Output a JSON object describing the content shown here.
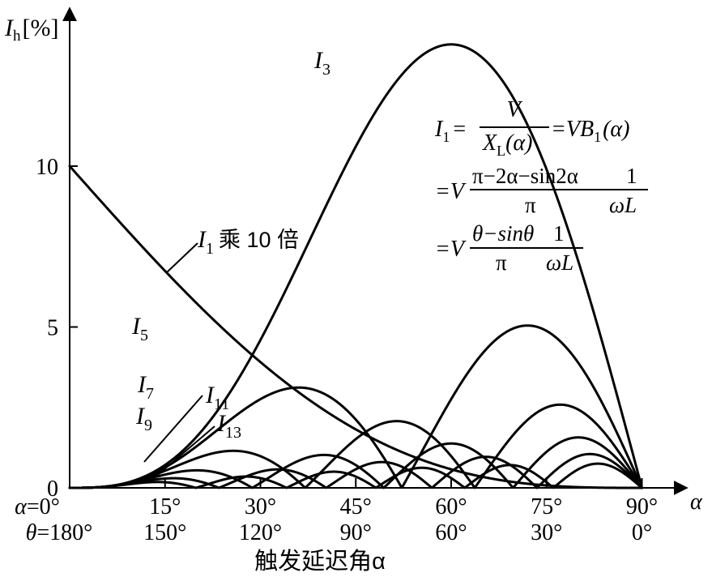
{
  "chart_data": {
    "type": "line",
    "ylabel": {
      "main": "I",
      "sub": "h",
      "unit": "[%]"
    },
    "xlabel": "触发延迟角α",
    "xaxis_symbol": "α",
    "xlim": [
      0,
      95
    ],
    "ylim": [
      0,
      14.5
    ],
    "yticks": [
      {
        "v": 0,
        "label": "0"
      },
      {
        "v": 5,
        "label": "5"
      },
      {
        "v": 10,
        "label": "10"
      }
    ],
    "xticks": [
      {
        "v": 0,
        "alpha": "α=0°",
        "theta": "θ=180°"
      },
      {
        "v": 15,
        "alpha": "15°",
        "theta": "150°"
      },
      {
        "v": 30,
        "alpha": "30°",
        "theta": "120°"
      },
      {
        "v": 45,
        "alpha": "45°",
        "theta": "90°"
      },
      {
        "v": 60,
        "alpha": "60°",
        "theta": "60°"
      },
      {
        "v": 75,
        "alpha": "75°",
        "theta": "30°"
      },
      {
        "v": 90,
        "alpha": "90°",
        "theta": "0°"
      }
    ],
    "series": [
      {
        "name": "I1乘10倍",
        "h": 1
      },
      {
        "name": "I3",
        "h": 3
      },
      {
        "name": "I5",
        "h": 5
      },
      {
        "name": "I7",
        "h": 7
      },
      {
        "name": "I9",
        "h": 9
      },
      {
        "name": "I11",
        "h": 11
      },
      {
        "name": "I13",
        "h": 13
      }
    ],
    "labels": {
      "I3": {
        "main": "I",
        "sub": "3"
      },
      "I5": {
        "main": "I",
        "sub": "5"
      },
      "I7": {
        "main": "I",
        "sub": "7"
      },
      "I9": {
        "main": "I",
        "sub": "9"
      },
      "I11": {
        "main": "I",
        "sub": "11"
      },
      "I13": {
        "main": "I",
        "sub": "13"
      },
      "I1": {
        "main": "I",
        "sub": "1",
        "suffix": "乘 10 倍"
      }
    },
    "formula": {
      "line1_lhs": "I",
      "line1_lhs_sub": "1",
      "line1_eq": "=",
      "line1_num": "V",
      "line1_den": "X",
      "line1_den_sub": "L",
      "line1_den_arg": "(α)",
      "line1_rhs": "=VB",
      "line1_rhs_sub": "1",
      "line1_rhs_arg": "(α)",
      "line2_prefix": "=V",
      "line2_num": "π−2α−sin2α",
      "line2_num2": "1",
      "line2_den": "π",
      "line2_den2": "ωL",
      "line3_prefix": "=V",
      "line3_num": "θ−sinθ",
      "line3_num2": "1",
      "line3_den": "π",
      "line3_den2": "ωL"
    }
  }
}
